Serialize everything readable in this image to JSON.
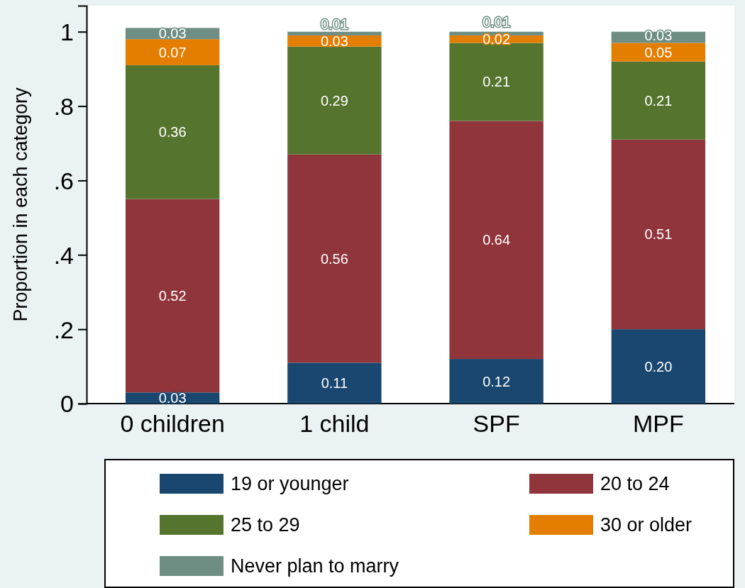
{
  "chart_data": {
    "type": "bar",
    "stacked": true,
    "ylabel": "Proportion in each category",
    "categories": [
      "0 children",
      "1 child",
      "SPF",
      "MPF"
    ],
    "ylim": [
      0,
      1.07
    ],
    "yticks": [
      0,
      {
        "value": 0.2,
        "label": ".2"
      },
      {
        "value": 0.4,
        "label": ".4"
      },
      {
        "value": 0.6,
        "label": ".6"
      },
      {
        "value": 0.8,
        "label": ".8"
      },
      1
    ],
    "legend": "bottom",
    "grid": false,
    "series": [
      {
        "name": "19 or younger",
        "color": "#1a476f",
        "values": [
          0.03,
          0.11,
          0.12,
          0.2
        ],
        "value_labels": [
          "0.03",
          "0.11",
          "0.12",
          "0.20"
        ]
      },
      {
        "name": "20 to 24",
        "color": "#90353b",
        "values": [
          0.52,
          0.56,
          0.64,
          0.51
        ],
        "value_labels": [
          "0.52",
          "0.56",
          "0.64",
          "0.51"
        ]
      },
      {
        "name": "25 to 29",
        "color": "#55752f",
        "values": [
          0.36,
          0.29,
          0.21,
          0.21
        ],
        "value_labels": [
          "0.36",
          "0.29",
          "0.21",
          "0.21"
        ]
      },
      {
        "name": "30 or older",
        "color": "#e37e00",
        "values": [
          0.07,
          0.03,
          0.02,
          0.05
        ],
        "value_labels": [
          "0.07",
          "0.03",
          "0.02",
          "0.05"
        ]
      },
      {
        "name": "Never plan to marry",
        "color": "#6e8e84",
        "values": [
          0.03,
          0.01,
          0.01,
          0.03
        ],
        "value_labels": [
          "0.03",
          "0.01",
          "0.01",
          "0.03"
        ]
      }
    ]
  }
}
